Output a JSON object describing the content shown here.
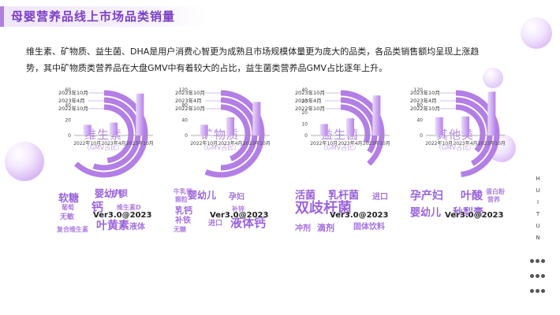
{
  "title": "母婴营养品线上市场品类销量",
  "intro": [
    "维生素、矿物质、益生菌、DHA是用户消费心智更为成熟且市场规模体量更为庞大的品类，各品类销售额均呈现上涨趋",
    "势，其中矿物质类营养品在大盘GMV中有着较大的占比，益生菌类营养品GMV占比逐年上升。"
  ],
  "side_text": [
    "H",
    "U",
    "I",
    "T",
    "U",
    "N"
  ],
  "ring_labels": [
    "2023年10月",
    "2023年4月",
    "2022年10月"
  ],
  "colors": {
    "accent": "#7b3fc4",
    "ring": "#b37ee6",
    "bar_light": "#eadcf8",
    "bar_dark": "#b880ec",
    "word": "#9b63dc"
  },
  "watermark": "Ver3.0@2023",
  "chart_data": [
    {
      "type": "bar",
      "category": "维生素",
      "subtitle": "（GMV占比）",
      "gmv_share": [
        0.62,
        0.55,
        0.48
      ],
      "categories": [
        "2022年10月",
        "2023年4月",
        "2023年10月"
      ],
      "values": [
        14,
        17,
        55
      ],
      "yticks": [
        0,
        20,
        40,
        60
      ],
      "ylim": [
        0,
        60
      ],
      "wordcloud": [
        {
          "text": "软糖",
          "size": 13
        },
        {
          "text": "婴幼儿",
          "size": 12
        },
        {
          "text": "护眼",
          "size": 10
        },
        {
          "text": "叶黄素",
          "size": 14
        },
        {
          "text": "钙",
          "size": 15
        },
        {
          "text": "液体",
          "size": 10
        },
        {
          "text": "无敏",
          "size": 9
        },
        {
          "text": "复合维生素",
          "size": 8
        },
        {
          "text": "葡萄",
          "size": 8
        },
        {
          "text": "维生素D",
          "size": 8
        }
      ]
    },
    {
      "type": "bar",
      "category": "矿物质",
      "subtitle": "（GMV占比）",
      "gmv_share": [
        0.56,
        0.5,
        0.44
      ],
      "categories": [
        "2022年10月",
        "2023年4月",
        "2023年10月"
      ],
      "values": [
        28,
        48,
        88
      ],
      "yticks": [
        0,
        40,
        80,
        120
      ],
      "ylim": [
        0,
        120
      ],
      "wordcloud": [
        {
          "text": "婴幼儿",
          "size": 12
        },
        {
          "text": "孕妇",
          "size": 10
        },
        {
          "text": "乳钙",
          "size": 11
        },
        {
          "text": "补铁",
          "size": 10
        },
        {
          "text": "进口",
          "size": 9
        },
        {
          "text": "液体钙",
          "size": 15
        },
        {
          "text": "牛乳钙",
          "size": 8
        },
        {
          "text": "无糖",
          "size": 8
        },
        {
          "text": "补锌",
          "size": 8
        },
        {
          "text": "颗粒",
          "size": 8
        }
      ]
    },
    {
      "type": "bar",
      "category": "益生菌",
      "subtitle": "（GMV占比）",
      "gmv_share": [
        0.38,
        0.34,
        0.3
      ],
      "categories": [
        "2022年10月",
        "2023年4月",
        "2023年10月"
      ],
      "values": [
        10,
        15,
        35
      ],
      "yticks": [
        0,
        10,
        20,
        30,
        40
      ],
      "ylim": [
        0,
        40
      ],
      "wordcloud": [
        {
          "text": "活菌",
          "size": 13
        },
        {
          "text": "乳杆菌",
          "size": 13
        },
        {
          "text": "进口",
          "size": 10
        },
        {
          "text": "双歧杆菌",
          "size": 18
        },
        {
          "text": "冲剂",
          "size": 10
        },
        {
          "text": "滴剂",
          "size": 11
        },
        {
          "text": "固体饮料",
          "size": 10
        }
      ]
    },
    {
      "type": "bar",
      "category": "其他类",
      "subtitle": "（GMV占比）",
      "gmv_share": [
        0.48,
        0.42,
        0.36
      ],
      "categories": [
        "2022年10月",
        "2023年4月",
        "2023年10月"
      ],
      "values": [
        48,
        50,
        115
      ],
      "yticks": [
        0,
        40,
        80,
        120
      ],
      "ylim": [
        0,
        120
      ],
      "wordcloud": [
        {
          "text": "孕产妇",
          "size": 14
        },
        {
          "text": "叶酸",
          "size": 14
        },
        {
          "text": "婴幼儿",
          "size": 13
        },
        {
          "text": "秋梨膏",
          "size": 13
        },
        {
          "text": "蛋白粉",
          "size": 8
        },
        {
          "text": "营养",
          "size": 8
        }
      ]
    }
  ]
}
